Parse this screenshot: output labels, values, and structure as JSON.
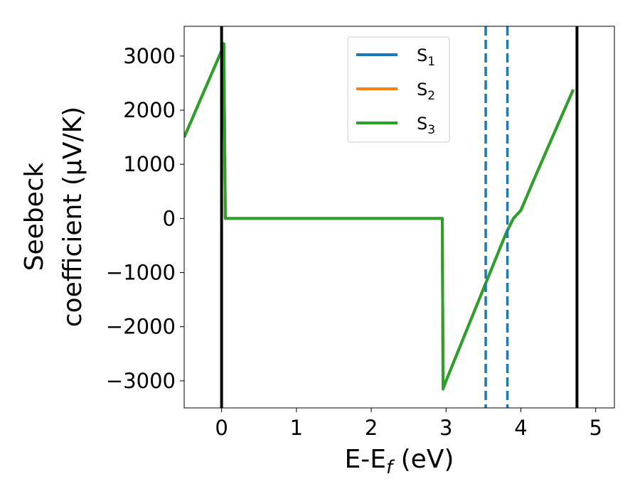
{
  "chart_data": {
    "type": "line",
    "title": "",
    "xlabel": {
      "main": "E-E",
      "sub": "f",
      "suffix": " (eV)"
    },
    "ylabel": {
      "line1": "Seebeck",
      "line2": "coefficient  (μV/K)"
    },
    "xlim": [
      -0.5,
      5.25
    ],
    "ylim": [
      -3500,
      3550
    ],
    "xticks": [
      0,
      1,
      2,
      3,
      4,
      5
    ],
    "xtick_labels": [
      "0",
      "1",
      "2",
      "3",
      "4",
      "5"
    ],
    "yticks": [
      -3000,
      -2000,
      -1000,
      0,
      1000,
      2000,
      3000
    ],
    "ytick_labels": [
      "−3000",
      "−2000",
      "−1000",
      "0",
      "1000",
      "2000",
      "3000"
    ],
    "legend_position": "upper center",
    "series": [
      {
        "name": "S",
        "sub": "1",
        "color": "#1f77b4",
        "x": [
          -0.5,
          0.0,
          0.03,
          0.05,
          2.95,
          2.96,
          3.0,
          3.5,
          3.8,
          3.9,
          4.0,
          4.2,
          4.5,
          4.7
        ],
        "y": [
          1500,
          3100,
          3230,
          0,
          0,
          -3150,
          -3000,
          -1300,
          -280,
          0,
          150,
          800,
          1750,
          2380
        ]
      },
      {
        "name": "S",
        "sub": "2",
        "color": "#ff7f0e",
        "x": [
          -0.5,
          0.0,
          0.03,
          0.05,
          2.95,
          2.96,
          3.0,
          3.5,
          3.8,
          3.9,
          4.0,
          4.2,
          4.5,
          4.7
        ],
        "y": [
          1500,
          3100,
          3230,
          0,
          0,
          -3150,
          -3000,
          -1300,
          -280,
          0,
          150,
          800,
          1750,
          2380
        ]
      },
      {
        "name": "S",
        "sub": "3",
        "color": "#2ca02c",
        "x": [
          -0.5,
          0.0,
          0.03,
          0.05,
          2.95,
          2.96,
          3.0,
          3.5,
          3.8,
          3.9,
          4.0,
          4.2,
          4.5,
          4.7
        ],
        "y": [
          1500,
          3100,
          3230,
          0,
          0,
          -3150,
          -3000,
          -1300,
          -280,
          0,
          150,
          800,
          1750,
          2380
        ]
      }
    ],
    "vlines": [
      {
        "x": 0.0,
        "color": "#000000",
        "style": "solid"
      },
      {
        "x": 4.75,
        "color": "#000000",
        "style": "solid"
      },
      {
        "x": 3.53,
        "color": "#1f77b4",
        "style": "dashed"
      },
      {
        "x": 3.82,
        "color": "#1f77b4",
        "style": "dashed"
      }
    ]
  }
}
